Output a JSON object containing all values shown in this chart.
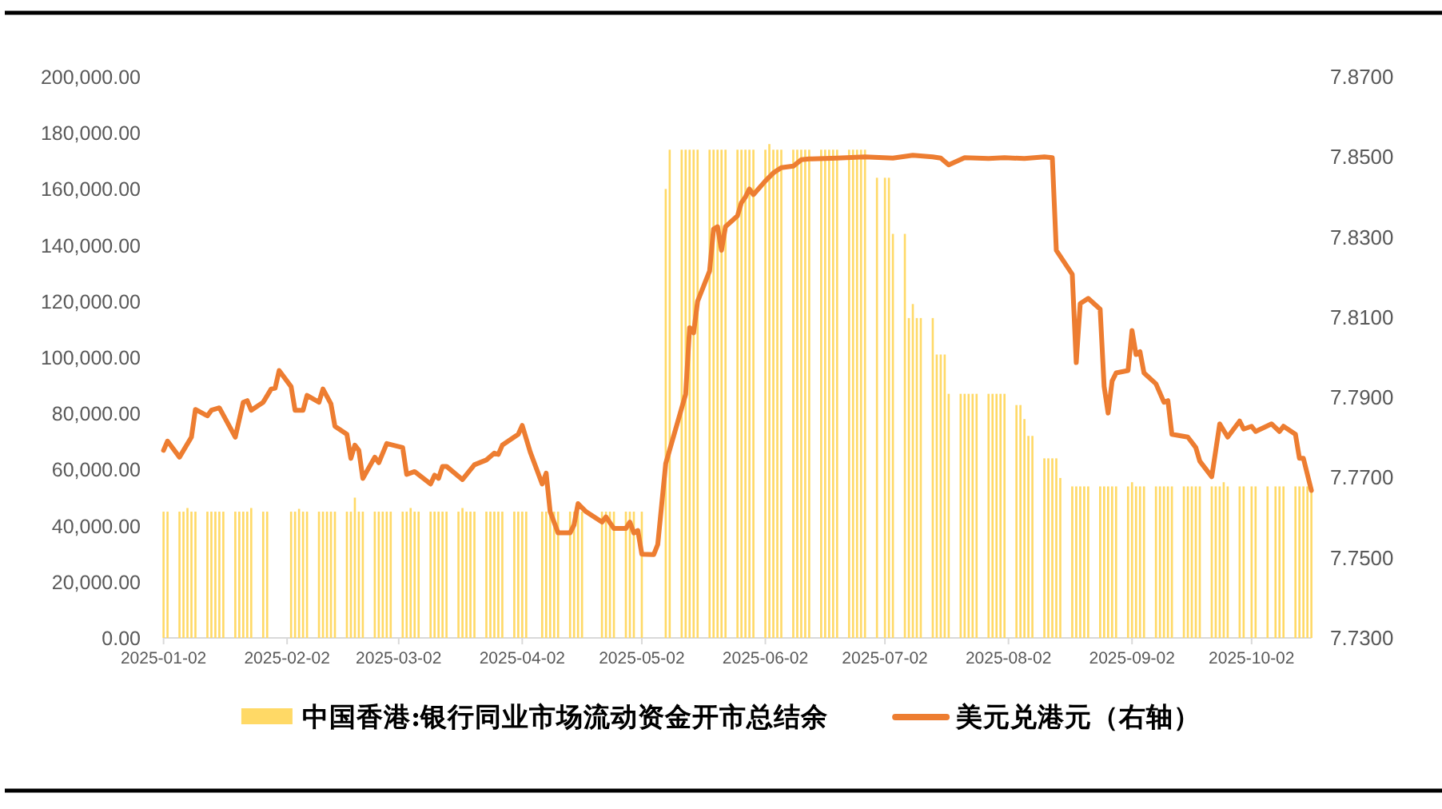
{
  "chart_data": {
    "type": "bar",
    "xlim": [
      "2025-01-02",
      "2025-10-17"
    ],
    "xticks": [
      "2025-01-02",
      "2025-02-02",
      "2025-03-02",
      "2025-04-02",
      "2025-05-02",
      "2025-06-02",
      "2025-07-02",
      "2025-08-02",
      "2025-09-02",
      "2025-10-02"
    ],
    "ylim": [
      0,
      200000
    ],
    "yticks": [
      {
        "value": 0,
        "label": "0.00"
      },
      {
        "value": 20000,
        "label": "20,000.00"
      },
      {
        "value": 40000,
        "label": "40,000.00"
      },
      {
        "value": 60000,
        "label": "60,000.00"
      },
      {
        "value": 80000,
        "label": "80,000.00"
      },
      {
        "value": 100000,
        "label": "100,000.00"
      },
      {
        "value": 120000,
        "label": "120,000.00"
      },
      {
        "value": 140000,
        "label": "140,000.00"
      },
      {
        "value": 160000,
        "label": "160,000.00"
      },
      {
        "value": 180000,
        "label": "180,000.00"
      },
      {
        "value": 200000,
        "label": "200,000.00"
      }
    ],
    "y2lim": [
      7.73,
      7.87
    ],
    "y2ticks": [
      {
        "value": 7.73,
        "label": "7.7300"
      },
      {
        "value": 7.75,
        "label": "7.7500"
      },
      {
        "value": 7.77,
        "label": "7.7700"
      },
      {
        "value": 7.79,
        "label": "7.7900"
      },
      {
        "value": 7.81,
        "label": "7.8100"
      },
      {
        "value": 7.83,
        "label": "7.8300"
      },
      {
        "value": 7.85,
        "label": "7.8500"
      },
      {
        "value": 7.87,
        "label": "7.8700"
      }
    ],
    "legend": "bottom",
    "series": [
      {
        "name": "中国香港:银行同业市场流动资金开市总结余",
        "color": "#ffd966",
        "x": [
          "2025-01-02",
          "2025-01-03",
          "2025-01-06",
          "2025-01-07",
          "2025-01-08",
          "2025-01-09",
          "2025-01-10",
          "2025-01-13",
          "2025-01-14",
          "2025-01-15",
          "2025-01-16",
          "2025-01-17",
          "2025-01-20",
          "2025-01-21",
          "2025-01-22",
          "2025-01-23",
          "2025-01-24",
          "2025-01-27",
          "2025-01-28",
          "2025-02-03",
          "2025-02-04",
          "2025-02-05",
          "2025-02-06",
          "2025-02-07",
          "2025-02-10",
          "2025-02-11",
          "2025-02-12",
          "2025-02-13",
          "2025-02-14",
          "2025-02-17",
          "2025-02-18",
          "2025-02-19",
          "2025-02-20",
          "2025-02-21",
          "2025-02-24",
          "2025-02-25",
          "2025-02-26",
          "2025-02-27",
          "2025-02-28",
          "2025-03-03",
          "2025-03-04",
          "2025-03-05",
          "2025-03-06",
          "2025-03-07",
          "2025-03-10",
          "2025-03-11",
          "2025-03-12",
          "2025-03-13",
          "2025-03-14",
          "2025-03-17",
          "2025-03-18",
          "2025-03-19",
          "2025-03-20",
          "2025-03-21",
          "2025-03-24",
          "2025-03-25",
          "2025-03-26",
          "2025-03-27",
          "2025-03-28",
          "2025-03-31",
          "2025-04-01",
          "2025-04-02",
          "2025-04-03",
          "2025-04-07",
          "2025-04-08",
          "2025-04-09",
          "2025-04-10",
          "2025-04-11",
          "2025-04-14",
          "2025-04-15",
          "2025-04-16",
          "2025-04-17",
          "2025-04-22",
          "2025-04-23",
          "2025-04-24",
          "2025-04-25",
          "2025-04-28",
          "2025-04-29",
          "2025-04-30",
          "2025-05-02",
          "2025-05-08",
          "2025-05-09",
          "2025-05-12",
          "2025-05-13",
          "2025-05-14",
          "2025-05-15",
          "2025-05-16",
          "2025-05-19",
          "2025-05-20",
          "2025-05-21",
          "2025-05-22",
          "2025-05-23",
          "2025-05-26",
          "2025-05-27",
          "2025-05-28",
          "2025-05-29",
          "2025-05-30",
          "2025-06-02",
          "2025-06-03",
          "2025-06-04",
          "2025-06-05",
          "2025-06-06",
          "2025-06-09",
          "2025-06-10",
          "2025-06-11",
          "2025-06-12",
          "2025-06-13",
          "2025-06-16",
          "2025-06-17",
          "2025-06-18",
          "2025-06-19",
          "2025-06-20",
          "2025-06-23",
          "2025-06-24",
          "2025-06-25",
          "2025-06-26",
          "2025-06-27",
          "2025-06-30",
          "2025-07-02",
          "2025-07-03",
          "2025-07-04",
          "2025-07-07",
          "2025-07-08",
          "2025-07-09",
          "2025-07-10",
          "2025-07-11",
          "2025-07-14",
          "2025-07-15",
          "2025-07-16",
          "2025-07-17",
          "2025-07-18",
          "2025-07-21",
          "2025-07-22",
          "2025-07-23",
          "2025-07-24",
          "2025-07-25",
          "2025-07-28",
          "2025-07-29",
          "2025-07-30",
          "2025-07-31",
          "2025-08-01",
          "2025-08-04",
          "2025-08-05",
          "2025-08-06",
          "2025-08-07",
          "2025-08-08",
          "2025-08-11",
          "2025-08-12",
          "2025-08-13",
          "2025-08-14",
          "2025-08-15",
          "2025-08-18",
          "2025-08-19",
          "2025-08-20",
          "2025-08-21",
          "2025-08-22",
          "2025-08-25",
          "2025-08-26",
          "2025-08-27",
          "2025-08-28",
          "2025-08-29",
          "2025-09-01",
          "2025-09-02",
          "2025-09-03",
          "2025-09-04",
          "2025-09-05",
          "2025-09-08",
          "2025-09-09",
          "2025-09-10",
          "2025-09-11",
          "2025-09-12",
          "2025-09-15",
          "2025-09-16",
          "2025-09-17",
          "2025-09-18",
          "2025-09-19",
          "2025-09-22",
          "2025-09-23",
          "2025-09-24",
          "2025-09-25",
          "2025-09-26",
          "2025-09-29",
          "2025-09-30",
          "2025-10-02",
          "2025-10-03",
          "2025-10-06",
          "2025-10-08",
          "2025-10-09",
          "2025-10-10",
          "2025-10-13",
          "2025-10-14",
          "2025-10-15",
          "2025-10-16",
          "2025-10-17"
        ],
        "values": [
          45000,
          45000,
          45000,
          45000,
          46300,
          45000,
          45000,
          45000,
          45000,
          45000,
          45000,
          45000,
          45000,
          45000,
          45000,
          45000,
          46300,
          45000,
          45000,
          45000,
          45000,
          46000,
          45000,
          45000,
          45000,
          45000,
          45000,
          45000,
          45000,
          45000,
          45000,
          50000,
          45000,
          45000,
          45000,
          45000,
          45000,
          45000,
          45000,
          45000,
          45000,
          46300,
          45000,
          45000,
          45000,
          45000,
          45000,
          45000,
          45000,
          45000,
          46300,
          45000,
          45000,
          45000,
          45000,
          45000,
          45000,
          45000,
          45000,
          45000,
          45000,
          45000,
          45000,
          45000,
          45000,
          45000,
          45000,
          45000,
          45000,
          45000,
          45000,
          45000,
          45000,
          45000,
          45000,
          45000,
          45000,
          45000,
          45000,
          45000,
          160000,
          174000,
          174000,
          174000,
          174000,
          174000,
          174000,
          174000,
          174000,
          174000,
          174000,
          174000,
          174000,
          174000,
          174000,
          174000,
          174000,
          174000,
          176000,
          174000,
          174000,
          174000,
          174000,
          174000,
          174000,
          174000,
          174000,
          174000,
          174000,
          174000,
          174000,
          174000,
          174000,
          174000,
          174000,
          174000,
          174000,
          164000,
          164000,
          164000,
          144000,
          144000,
          114000,
          119000,
          114000,
          114000,
          114000,
          101000,
          101000,
          101000,
          87000,
          87000,
          87000,
          87000,
          87000,
          87000,
          87000,
          87000,
          87000,
          87000,
          87000,
          83000,
          83000,
          78000,
          72000,
          72000,
          64000,
          64000,
          64000,
          64000,
          57000,
          54000,
          54000,
          54000,
          54000,
          54000,
          54000,
          54000,
          54000,
          54000,
          54000,
          54000,
          55500,
          54000,
          54000,
          54000,
          54000,
          54000,
          54000,
          54000,
          54000,
          54000,
          54000,
          54000,
          54000,
          54000,
          54000,
          54000,
          54000,
          55500,
          54000,
          54000,
          54000,
          54000,
          54000,
          54000,
          54000,
          54000,
          54000,
          54000,
          54000,
          54000,
          54000,
          54000
        ]
      },
      {
        "name": "美元兑港元（右轴）",
        "type": "line",
        "axis": "y2",
        "color": "#ed7d31",
        "x": [
          "2025-01-02",
          "2025-01-03",
          "2025-01-06",
          "2025-01-09",
          "2025-01-10",
          "2025-01-13",
          "2025-01-14",
          "2025-01-16",
          "2025-01-20",
          "2025-01-22",
          "2025-01-23",
          "2025-01-24",
          "2025-01-27",
          "2025-01-29",
          "2025-01-30",
          "2025-01-31",
          "2025-02-03",
          "2025-02-04",
          "2025-02-06",
          "2025-02-07",
          "2025-02-10",
          "2025-02-11",
          "2025-02-13",
          "2025-02-14",
          "2025-02-17",
          "2025-02-18",
          "2025-02-19",
          "2025-02-20",
          "2025-02-21",
          "2025-02-24",
          "2025-02-25",
          "2025-02-27",
          "2025-03-03",
          "2025-03-04",
          "2025-03-06",
          "2025-03-10",
          "2025-03-11",
          "2025-03-12",
          "2025-03-13",
          "2025-03-14",
          "2025-03-18",
          "2025-03-21",
          "2025-03-24",
          "2025-03-26",
          "2025-03-27",
          "2025-03-28",
          "2025-04-01",
          "2025-04-02",
          "2025-04-04",
          "2025-04-07",
          "2025-04-08",
          "2025-04-09",
          "2025-04-11",
          "2025-04-14",
          "2025-04-15",
          "2025-04-16",
          "2025-04-18",
          "2025-04-22",
          "2025-04-23",
          "2025-04-25",
          "2025-04-28",
          "2025-04-29",
          "2025-04-30",
          "2025-05-01",
          "2025-05-02",
          "2025-05-05",
          "2025-05-06",
          "2025-05-08",
          "2025-05-13",
          "2025-05-14",
          "2025-05-15",
          "2025-05-16",
          "2025-05-19",
          "2025-05-20",
          "2025-05-21",
          "2025-05-22",
          "2025-05-23",
          "2025-05-26",
          "2025-05-27",
          "2025-05-28",
          "2025-05-29",
          "2025-05-30",
          "2025-06-02",
          "2025-06-04",
          "2025-06-06",
          "2025-06-09",
          "2025-06-11",
          "2025-06-13",
          "2025-06-20",
          "2025-06-27",
          "2025-07-04",
          "2025-07-09",
          "2025-07-14",
          "2025-07-16",
          "2025-07-18",
          "2025-07-22",
          "2025-07-28",
          "2025-08-01",
          "2025-08-06",
          "2025-08-11",
          "2025-08-13",
          "2025-08-14",
          "2025-08-18",
          "2025-08-19",
          "2025-08-20",
          "2025-08-22",
          "2025-08-25",
          "2025-08-26",
          "2025-08-27",
          "2025-08-28",
          "2025-08-29",
          "2025-09-01",
          "2025-09-02",
          "2025-09-03",
          "2025-09-04",
          "2025-09-05",
          "2025-09-08",
          "2025-09-10",
          "2025-09-11",
          "2025-09-12",
          "2025-09-16",
          "2025-09-18",
          "2025-09-19",
          "2025-09-22",
          "2025-09-23",
          "2025-09-24",
          "2025-09-26",
          "2025-09-29",
          "2025-09-30",
          "2025-10-02",
          "2025-10-03",
          "2025-10-07",
          "2025-10-09",
          "2025-10-10",
          "2025-10-13",
          "2025-10-14",
          "2025-10-15",
          "2025-10-17"
        ],
        "values": [
          7.7768,
          7.7791,
          7.7751,
          7.7801,
          7.787,
          7.7854,
          7.7868,
          7.7874,
          7.7801,
          7.7888,
          7.7892,
          7.7868,
          7.7888,
          7.7921,
          7.7923,
          7.7967,
          7.7927,
          7.7868,
          7.7868,
          7.7905,
          7.7888,
          7.7921,
          7.7884,
          7.7828,
          7.7808,
          7.7748,
          7.7781,
          7.7768,
          7.7698,
          7.7751,
          7.7737,
          7.7785,
          7.7775,
          7.7708,
          7.7715,
          7.7684,
          7.7706,
          7.7698,
          7.7728,
          7.7728,
          7.7695,
          7.7732,
          7.7744,
          7.7761,
          7.7758,
          7.7781,
          7.7808,
          7.783,
          7.7764,
          7.7684,
          7.7711,
          7.7615,
          7.7562,
          7.7562,
          7.7582,
          7.7635,
          7.7615,
          7.7589,
          7.7602,
          7.7573,
          7.7573,
          7.7589,
          7.7562,
          7.7568,
          7.7509,
          7.7508,
          7.7533,
          7.7735,
          7.7908,
          7.8074,
          7.8061,
          7.814,
          7.8215,
          7.832,
          7.8326,
          7.8267,
          7.8326,
          7.8353,
          7.8386,
          7.84,
          7.842,
          7.8406,
          7.844,
          7.846,
          7.8473,
          7.8477,
          7.8493,
          7.8495,
          7.8497,
          7.85,
          7.8497,
          7.8504,
          7.85,
          7.8497,
          7.848,
          7.8498,
          7.8496,
          7.8498,
          7.8496,
          7.85,
          7.8498,
          7.8267,
          7.8207,
          7.7987,
          7.8134,
          7.8147,
          7.812,
          7.7927,
          7.7861,
          7.7941,
          7.7961,
          7.7967,
          7.8067,
          7.8007,
          7.8014,
          7.7961,
          7.7934,
          7.7888,
          7.7892,
          7.7808,
          7.7801,
          7.7775,
          7.7741,
          7.7702,
          7.7768,
          7.7834,
          7.7801,
          7.7841,
          7.7821,
          7.7828,
          7.7815,
          7.7834,
          7.7815,
          7.7828,
          7.7808,
          7.7748,
          7.7748,
          7.7668
        ]
      }
    ]
  }
}
